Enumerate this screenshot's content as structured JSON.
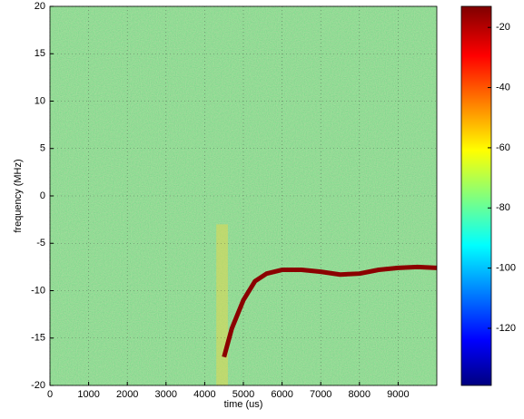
{
  "chart_data": {
    "type": "spectrogram",
    "xlabel": "time (us)",
    "ylabel": "frequency (MHz)",
    "xlim": [
      0,
      10000
    ],
    "ylim": [
      -20,
      20
    ],
    "xticks": [
      0,
      1000,
      2000,
      3000,
      4000,
      5000,
      6000,
      7000,
      8000,
      9000
    ],
    "yticks": [
      -20,
      -15,
      -10,
      -5,
      0,
      5,
      10,
      15,
      20
    ],
    "grid": true,
    "clim": [
      -139,
      -13
    ],
    "cticks": [
      -20,
      -40,
      -60,
      -80,
      -100,
      -120
    ],
    "series": [
      {
        "color": "#8b0000",
        "x": [
          4500,
          4700,
          5000,
          5300,
          5600,
          6000,
          6500,
          7000,
          7500,
          8000,
          8500,
          9000,
          9500,
          10000
        ],
        "values": [
          -17,
          -14,
          -11,
          -9,
          -8.2,
          -7.8,
          -7.8,
          -8,
          -8.3,
          -8.2,
          -7.8,
          -7.6,
          -7.5,
          -7.6
        ]
      }
    ]
  }
}
